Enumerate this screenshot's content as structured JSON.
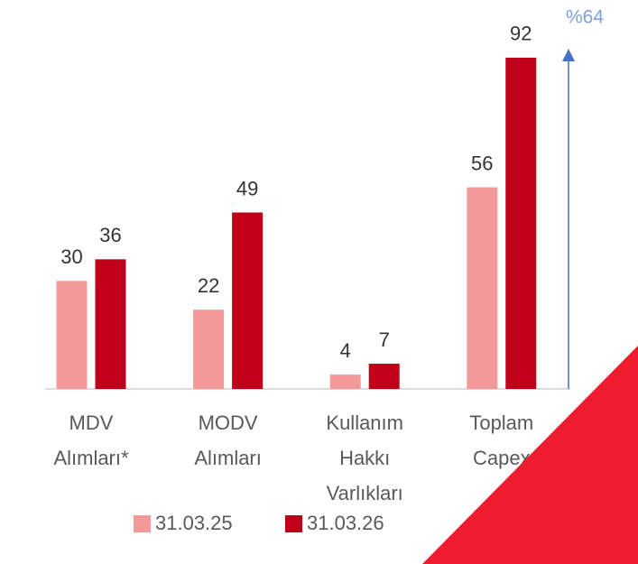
{
  "chart_data": {
    "type": "bar",
    "categories": [
      [
        "MDV",
        "Alımları*"
      ],
      [
        "MODV",
        "Alımları"
      ],
      [
        "Kullanım",
        "Hakkı",
        "Varlıkları"
      ],
      [
        "Toplam",
        "Capex"
      ]
    ],
    "series": [
      {
        "name": "31.03.25",
        "color": "#f4999a",
        "values": [
          30,
          22,
          4,
          56
        ]
      },
      {
        "name": "31.03.26",
        "color": "#c00018",
        "values": [
          36,
          49,
          7,
          92
        ]
      }
    ],
    "ylim": [
      0,
      100
    ],
    "annotation": "%64",
    "legend": "bottom"
  }
}
